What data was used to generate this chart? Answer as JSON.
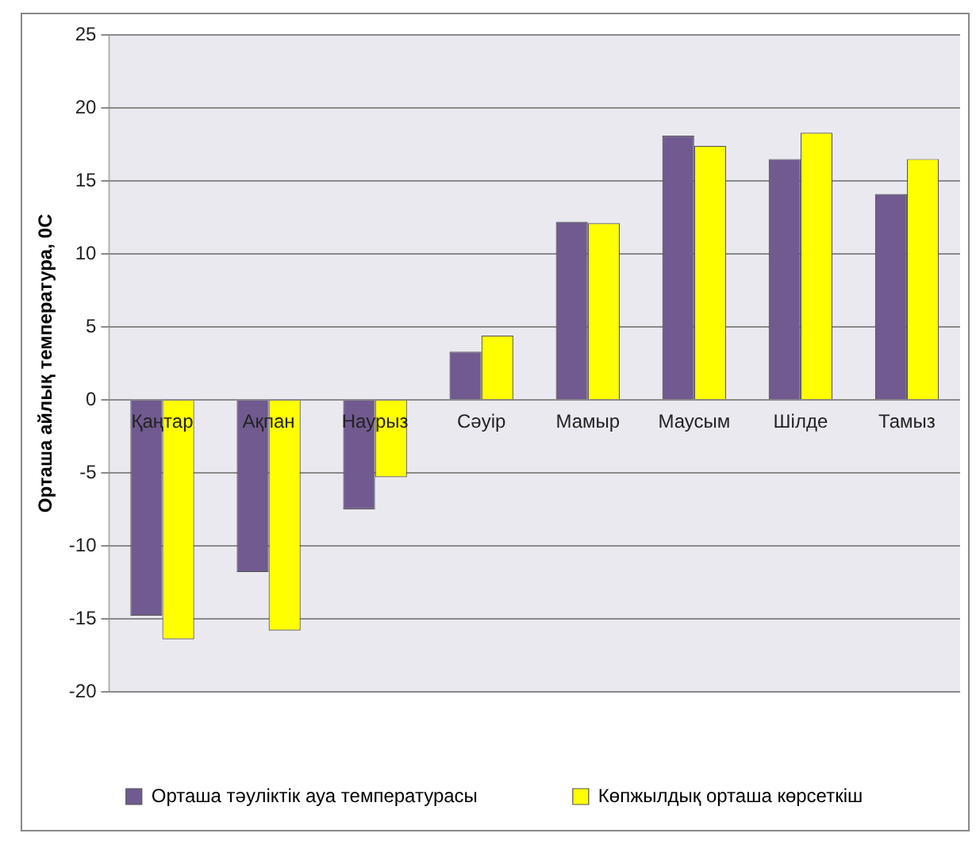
{
  "chart_data": {
    "type": "bar",
    "ylabel": "Орташа айлық температура, 0С",
    "categories": [
      "Қаңтар",
      "Ақпан",
      "Наурыз",
      "Сәуір",
      "Мамыр",
      "Маусым",
      "Шілде",
      "Тамыз"
    ],
    "series": [
      {
        "name": "Орташа тәуліктік ауа температурасы",
        "color": "#705a8f",
        "values": [
          -14.8,
          -11.8,
          -7.5,
          3.3,
          12.2,
          18.1,
          16.5,
          14.1
        ]
      },
      {
        "name": "Көпжылдық орташа көрсеткіш",
        "color": "#ffff00",
        "values": [
          -16.4,
          -15.8,
          -5.3,
          4.4,
          12.1,
          17.4,
          18.3,
          16.5
        ]
      }
    ],
    "ylim": [
      -20,
      25
    ],
    "yticks": [
      -20,
      -15,
      -10,
      -5,
      0,
      5,
      10,
      15,
      20,
      25
    ],
    "grid": "y",
    "legend": "bottom"
  }
}
